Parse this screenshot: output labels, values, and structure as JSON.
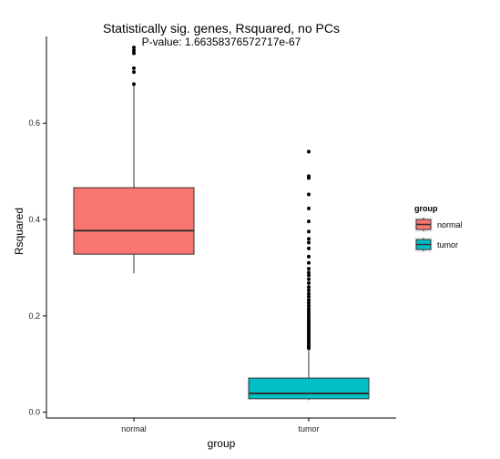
{
  "chart_data": {
    "type": "boxplot",
    "title": "Statistically sig. genes, Rsquared, no PCs",
    "subtitle": "P-value: 1.66358376572717e-67",
    "xlabel": "group",
    "ylabel": "Rsquared",
    "ylim": [
      -0.012,
      0.78
    ],
    "yticks": [
      0.0,
      0.2,
      0.4,
      0.6
    ],
    "ytick_labels": [
      "0.0",
      "0.2",
      "0.4",
      "0.6"
    ],
    "categories": [
      "normal",
      "tumor"
    ],
    "grid": false,
    "legend": {
      "title": "group",
      "position": "right",
      "entries": [
        {
          "label": "normal",
          "color": "#F8766D"
        },
        {
          "label": "tumor",
          "color": "#00BFC4"
        }
      ]
    },
    "series": [
      {
        "name": "normal",
        "color": "#F8766D",
        "whisker_low": 0.288,
        "q1": 0.328,
        "median": 0.377,
        "q3": 0.466,
        "whisker_high": 0.681,
        "outliers": [
          0.681,
          0.706,
          0.714,
          0.745,
          0.751,
          0.757
        ]
      },
      {
        "name": "tumor",
        "color": "#00BFC4",
        "whisker_low": 0.025,
        "q1": 0.028,
        "median": 0.039,
        "q3": 0.071,
        "whisker_high": 0.131,
        "outliers": [
          0.133,
          0.136,
          0.139,
          0.142,
          0.146,
          0.15,
          0.154,
          0.158,
          0.162,
          0.166,
          0.17,
          0.174,
          0.178,
          0.182,
          0.186,
          0.19,
          0.195,
          0.2,
          0.205,
          0.21,
          0.215,
          0.221,
          0.227,
          0.233,
          0.24,
          0.246,
          0.253,
          0.26,
          0.268,
          0.276,
          0.284,
          0.29,
          0.298,
          0.31,
          0.323,
          0.34,
          0.352,
          0.36,
          0.375,
          0.396,
          0.423,
          0.452,
          0.486,
          0.49,
          0.541
        ]
      }
    ]
  }
}
